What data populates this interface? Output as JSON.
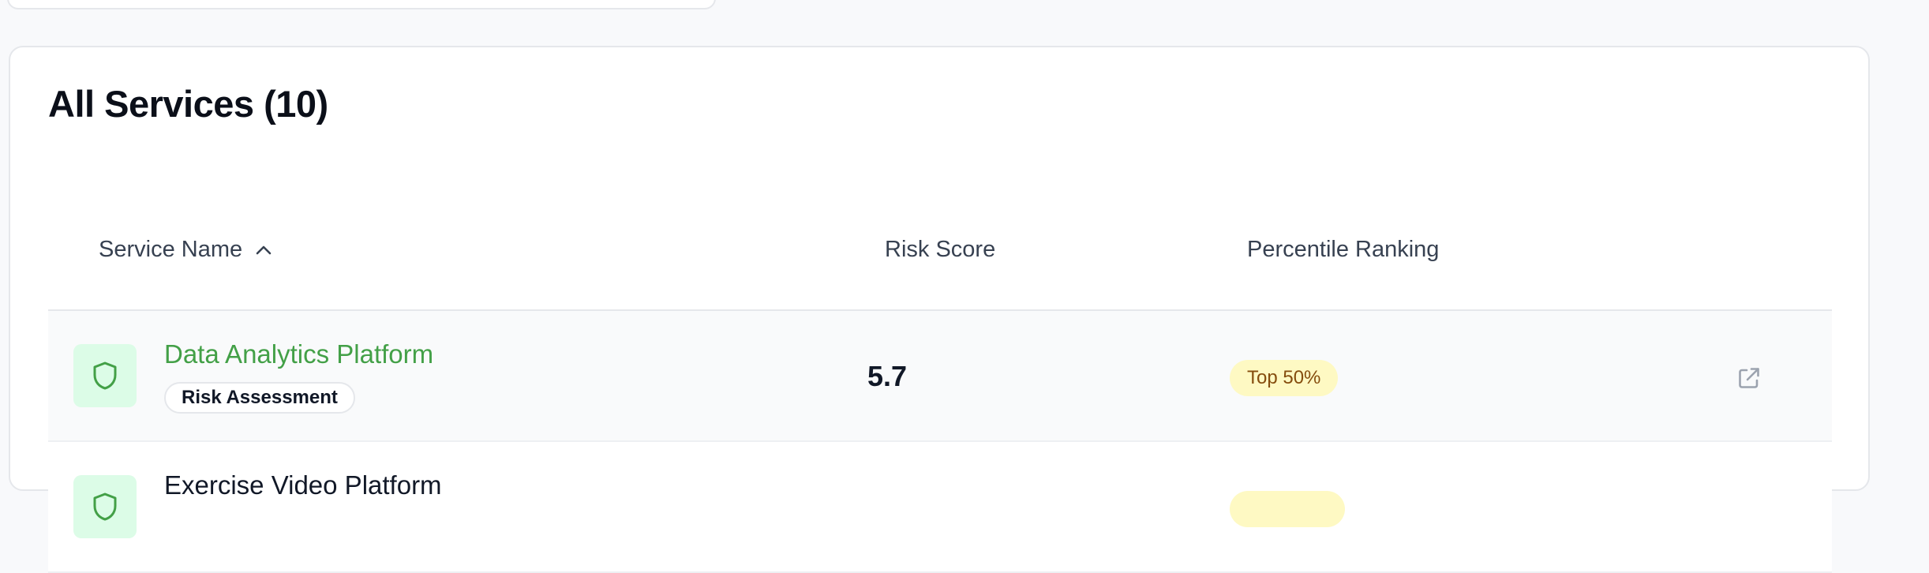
{
  "card": {
    "title": "All Services (10)"
  },
  "table": {
    "columns": {
      "service_name": "Service Name",
      "risk_score": "Risk Score",
      "percentile_ranking": "Percentile Ranking"
    },
    "rows": [
      {
        "name": "Data Analytics Platform",
        "tag": "Risk Assessment",
        "score": "5.7",
        "percentile": "Top 50%"
      },
      {
        "name": "Exercise Video Platform"
      }
    ]
  },
  "icons": {
    "sort": "chevron-up-icon",
    "service": "shield-icon",
    "open": "external-link-icon"
  },
  "colors": {
    "accent_green": "#43a047",
    "badge_yellow_bg": "#fef9c3",
    "badge_yellow_text": "#854d0e",
    "icon_bg": "#dcfce7"
  }
}
